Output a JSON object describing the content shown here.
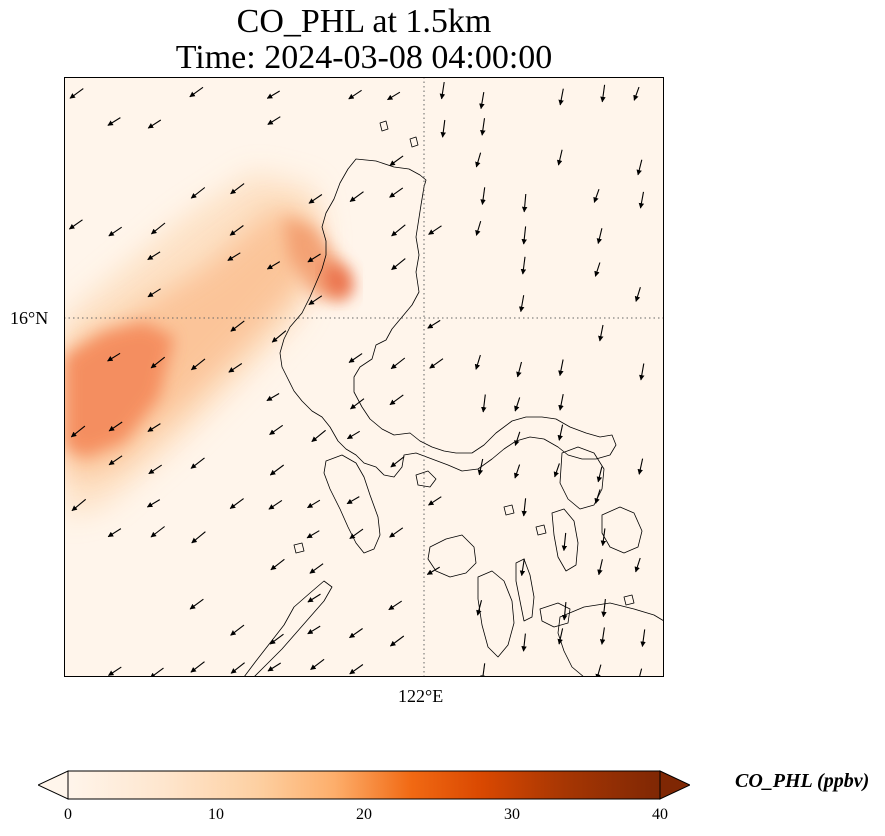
{
  "title": {
    "line1": "CO_PHL at 1.5km",
    "line2": "Time: 2024-03-08 04:00:00"
  },
  "map": {
    "lat_tick_label": "16°N",
    "lon_tick_label": "122°E",
    "gridlines": true,
    "background_color": "#fff5eb",
    "coastline_color": "#000000",
    "plume_color_low": "#fdd8b0",
    "plume_color_mid": "#f7955c",
    "plume_color_high": "#e8613c"
  },
  "colorbar": {
    "label": "CO_PHL (ppbv)",
    "colormap": "OrRd",
    "extend": "both",
    "min": 0,
    "max": 40,
    "tick_labels": [
      "0",
      "10",
      "20",
      "30",
      "40"
    ],
    "colors": [
      "#fff5eb",
      "#fdd0a2",
      "#fdae6b",
      "#f16913",
      "#d94801",
      "#a63603",
      "#7f2704"
    ]
  }
}
